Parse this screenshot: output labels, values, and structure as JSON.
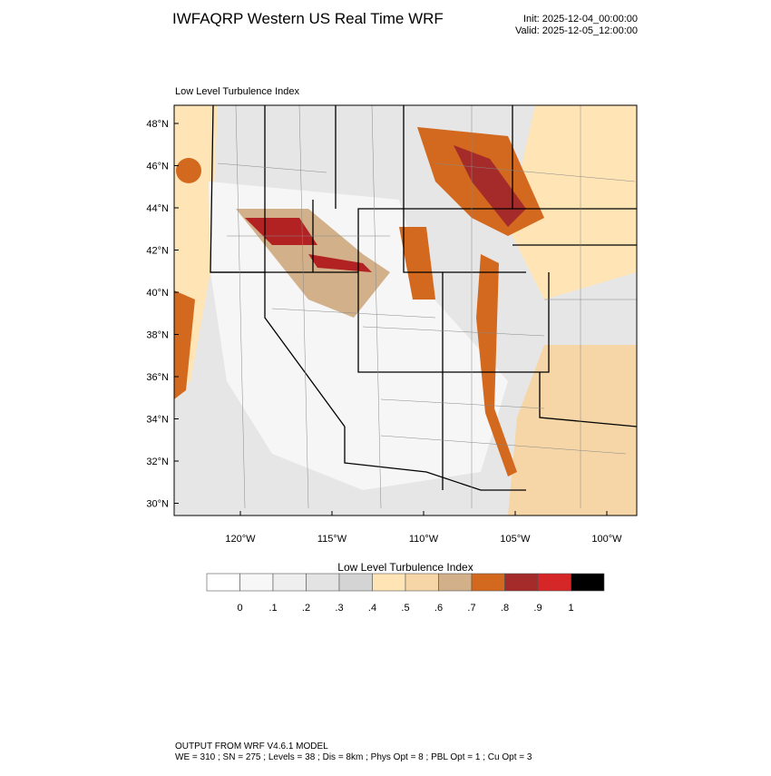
{
  "header": {
    "title": "IWFAQRP Western US Real Time WRF",
    "init": "Init: 2025-12-04_00:00:00",
    "valid": "Valid: 2025-12-05_12:00:00"
  },
  "map": {
    "label": "Low Level Turbulence Index",
    "lat_labels": [
      "48°N",
      "46°N",
      "44°N",
      "42°N",
      "40°N",
      "38°N",
      "36°N",
      "34°N",
      "32°N",
      "30°N"
    ],
    "lon_labels": [
      "120°W",
      "115°W",
      "110°W",
      "105°W",
      "100°W"
    ]
  },
  "colorbar": {
    "title": "Low Level Turbulence Index",
    "labels": [
      "0",
      ".1",
      ".2",
      ".3",
      ".4",
      ".5",
      ".6",
      ".7",
      ".8",
      ".9",
      "1"
    ],
    "colors": [
      "#ffffff",
      "#f7f7f7",
      "#efefef",
      "#e3e3e3",
      "#d4d4d4",
      "#ffe4b5",
      "#f6d6a6",
      "#d2b08a",
      "#d2691e",
      "#a52a2a",
      "#d62728",
      "#000000"
    ]
  },
  "footer": {
    "line1": "OUTPUT FROM WRF V4.6.1 MODEL",
    "line2": "WE = 310 ; SN = 275 ; Levels = 38 ; Dis = 8km ; Phys Opt = 8 ; PBL Opt = 1 ; Cu Opt = 3"
  }
}
